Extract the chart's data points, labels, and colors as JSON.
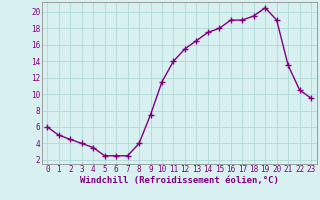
{
  "x": [
    0,
    1,
    2,
    3,
    4,
    5,
    6,
    7,
    8,
    9,
    10,
    11,
    12,
    13,
    14,
    15,
    16,
    17,
    18,
    19,
    20,
    21,
    22,
    23
  ],
  "y": [
    6,
    5,
    4.5,
    4,
    3.5,
    2.5,
    2.5,
    2.5,
    4,
    7.5,
    11.5,
    14,
    15.5,
    16.5,
    17.5,
    18,
    19,
    19,
    19.5,
    20.5,
    19,
    13.5,
    10.5,
    9.5
  ],
  "line_color": "#800080",
  "marker": "+",
  "xlabel": "Windchill (Refroidissement éolien,°C)",
  "xlim": [
    -0.5,
    23.5
  ],
  "ylim": [
    1.5,
    21.2
  ],
  "yticks": [
    2,
    4,
    6,
    8,
    10,
    12,
    14,
    16,
    18,
    20
  ],
  "xticks": [
    0,
    1,
    2,
    3,
    4,
    5,
    6,
    7,
    8,
    9,
    10,
    11,
    12,
    13,
    14,
    15,
    16,
    17,
    18,
    19,
    20,
    21,
    22,
    23
  ],
  "bg_color": "#d8f0f0",
  "grid_color": "#b0d8d8",
  "tick_color": "#800080",
  "label_color": "#800080",
  "xlabel_fontsize": 6.5,
  "tick_fontsize": 5.5,
  "line_width": 1.0,
  "marker_size": 4,
  "marker_ew": 1.0
}
